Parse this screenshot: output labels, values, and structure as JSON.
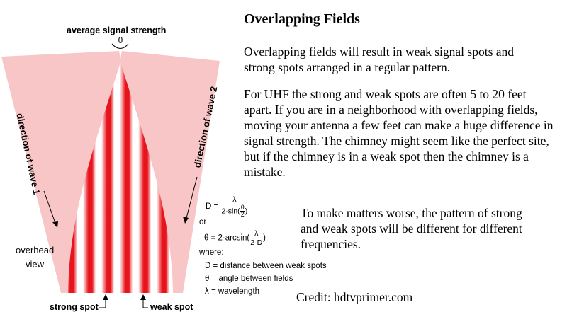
{
  "heading": "Overlapping Fields",
  "paragraphs": [
    "Overlapping fields will result in weak signal spots and strong spots arranged in a regular pattern.",
    "For UHF the strong and weak spots are often 5 to 20 feet apart. If you are in a neighborhood with overlapping fields, moving your antenna a few feet can make a huge difference in signal strength. The chimney might seem like the perfect site, but if the chimney is in a weak spot then the chimney is a mistake.",
    "To make matters worse, the pattern of strong and weak spots will be different for different frequencies."
  ],
  "credit": "Credit: hdtvprimer.com",
  "diagram": {
    "top_label": "average signal strength",
    "angle_symbol": "θ",
    "wave1_label": "direction of wave 1",
    "wave2_label": "direction of wave 2",
    "view_label_line1": "overhead",
    "view_label_line2": "view",
    "strong_label": "strong spot",
    "weak_label": "weak spot",
    "colors": {
      "wave_field": "#f8c6c6",
      "strong": "#e8141c",
      "weak": "#ffffff"
    }
  },
  "formulas": {
    "f1_lhs": "D =",
    "f1_num": "λ",
    "f1_den_pre": "2·sin(",
    "f1_den_frac_num": "θ",
    "f1_den_frac_den": "2",
    "f1_den_post": ")",
    "or": "or",
    "f2_lhs": "θ = 2·arcsin(",
    "f2_num": "λ",
    "f2_den": "2·D",
    "f2_post": ")",
    "where": "where:",
    "legend": [
      "D = distance between weak spots",
      "θ = angle between fields",
      "λ = wavelength"
    ]
  }
}
